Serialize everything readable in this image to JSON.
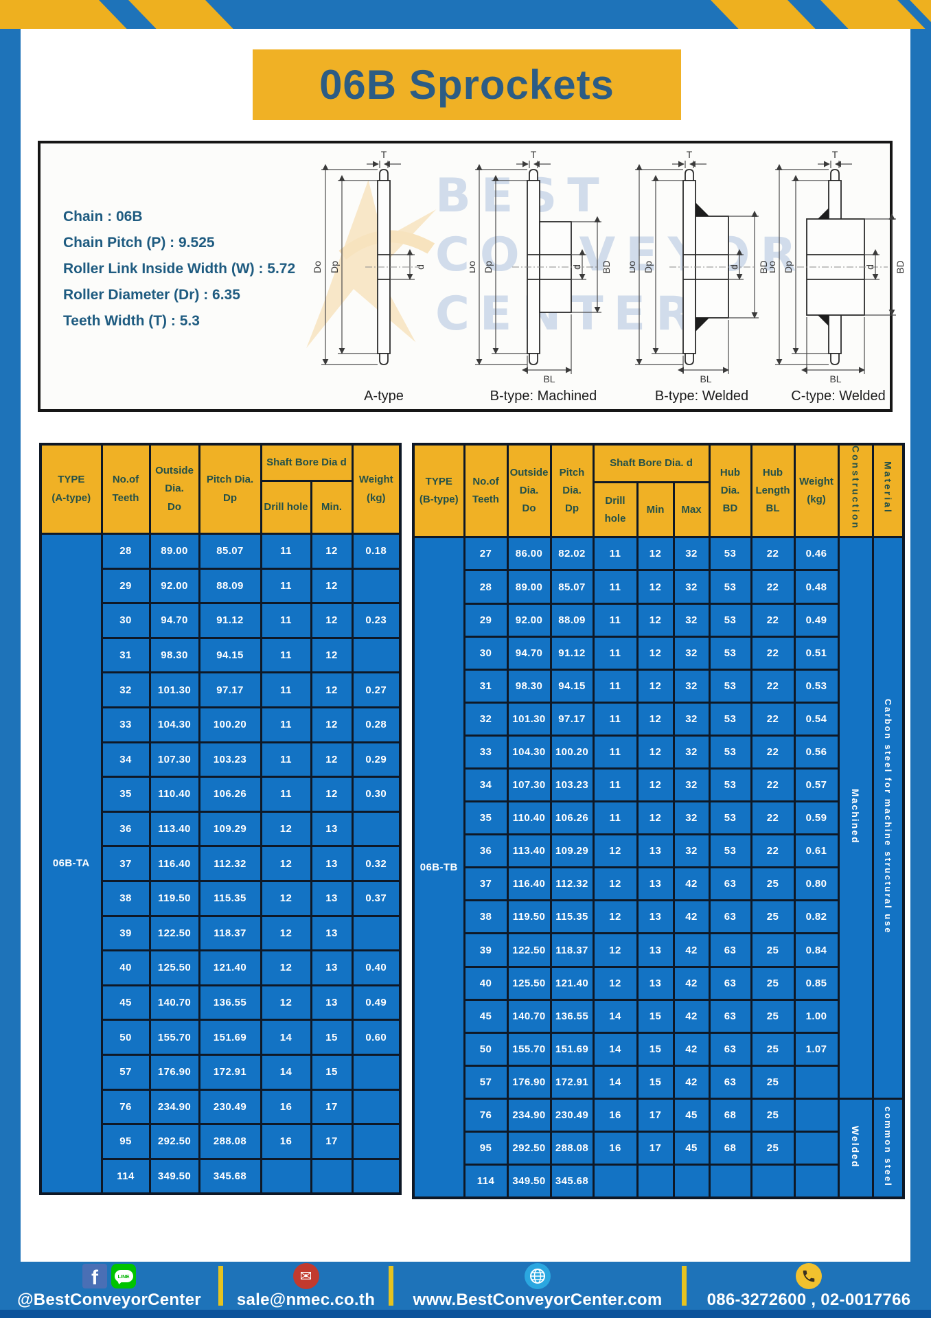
{
  "page": {
    "title": "06B Sprockets"
  },
  "colors": {
    "brand_blue": "#1e73b9",
    "brand_yellow": "#f0b125",
    "table_body_blue": "#1373c4",
    "header_text": "#235048",
    "title_text": "#2c5c84",
    "spec_text": "#1e5b80"
  },
  "specs": {
    "lines": [
      "Chain : 06B",
      "Chain Pitch (P) : 9.525",
      "Roller Link Inside Width (W) : 5.72",
      "Roller Diameter (Dr) : 6.35",
      "Teeth Width (T) : 5.3"
    ]
  },
  "watermark": {
    "line1": "BEST",
    "line2": "CONVEYOR",
    "line3": "CENTER"
  },
  "diagrams": [
    {
      "caption": "A-type",
      "labels": {
        "t": "T",
        "do": "Do",
        "dp": "Dp",
        "d": "d"
      }
    },
    {
      "caption": "B-type: Machined",
      "labels": {
        "t": "T",
        "do": "Do",
        "dp": "Dp",
        "d": "d",
        "bd": "BD",
        "bl": "BL"
      }
    },
    {
      "caption": "B-type: Welded",
      "labels": {
        "t": "T",
        "do": "Do",
        "dp": "Dp",
        "d": "d",
        "bd": "BD",
        "bl": "BL"
      }
    },
    {
      "caption": "C-type: Welded",
      "labels": {
        "t": "T",
        "do": "Do",
        "dp": "Dp",
        "d": "d",
        "bd": "BD",
        "bl": "BL"
      }
    }
  ],
  "left_table": {
    "header": {
      "type": "TYPE\n(A-type)",
      "teeth": "No.of\nTeeth",
      "outside": "Outside\nDia.\nDo",
      "pitch": "Pitch Dia.\nDp",
      "shaft_group": "Shaft Bore Dia d",
      "drill": "Drill hole",
      "min": "Min.",
      "weight": "Weight\n(kg)"
    },
    "type_label": "06B-TA",
    "rows": [
      [
        "28",
        "89.00",
        "85.07",
        "11",
        "12",
        "0.18"
      ],
      [
        "29",
        "92.00",
        "88.09",
        "11",
        "12",
        ""
      ],
      [
        "30",
        "94.70",
        "91.12",
        "11",
        "12",
        "0.23"
      ],
      [
        "31",
        "98.30",
        "94.15",
        "11",
        "12",
        ""
      ],
      [
        "32",
        "101.30",
        "97.17",
        "11",
        "12",
        "0.27"
      ],
      [
        "33",
        "104.30",
        "100.20",
        "11",
        "12",
        "0.28"
      ],
      [
        "34",
        "107.30",
        "103.23",
        "11",
        "12",
        "0.29"
      ],
      [
        "35",
        "110.40",
        "106.26",
        "11",
        "12",
        "0.30"
      ],
      [
        "36",
        "113.40",
        "109.29",
        "12",
        "13",
        ""
      ],
      [
        "37",
        "116.40",
        "112.32",
        "12",
        "13",
        "0.32"
      ],
      [
        "38",
        "119.50",
        "115.35",
        "12",
        "13",
        "0.37"
      ],
      [
        "39",
        "122.50",
        "118.37",
        "12",
        "13",
        ""
      ],
      [
        "40",
        "125.50",
        "121.40",
        "12",
        "13",
        "0.40"
      ],
      [
        "45",
        "140.70",
        "136.55",
        "12",
        "13",
        "0.49"
      ],
      [
        "50",
        "155.70",
        "151.69",
        "14",
        "15",
        "0.60"
      ],
      [
        "57",
        "176.90",
        "172.91",
        "14",
        "15",
        ""
      ],
      [
        "76",
        "234.90",
        "230.49",
        "16",
        "17",
        ""
      ],
      [
        "95",
        "292.50",
        "288.08",
        "16",
        "17",
        ""
      ],
      [
        "114",
        "349.50",
        "345.68",
        "",
        "",
        ""
      ]
    ]
  },
  "right_table": {
    "header": {
      "type": "TYPE\n(B-type)",
      "teeth": "No.of\nTeeth",
      "outside": "Outside\nDia.\nDo",
      "pitch": "Pitch\nDia.\nDp",
      "shaft_group": "Shaft Bore Dia. d",
      "drill": "Drill hole",
      "min": "Min",
      "max": "Max",
      "hub_dia": "Hub\nDia.\nBD",
      "hub_len": "Hub\nLength\nBL",
      "weight": "Weight\n(kg)",
      "construction": "Construction",
      "material": "Material"
    },
    "type_label": "06B-TB",
    "rows": [
      [
        "27",
        "86.00",
        "82.02",
        "11",
        "12",
        "32",
        "53",
        "22",
        "0.46"
      ],
      [
        "28",
        "89.00",
        "85.07",
        "11",
        "12",
        "32",
        "53",
        "22",
        "0.48"
      ],
      [
        "29",
        "92.00",
        "88.09",
        "11",
        "12",
        "32",
        "53",
        "22",
        "0.49"
      ],
      [
        "30",
        "94.70",
        "91.12",
        "11",
        "12",
        "32",
        "53",
        "22",
        "0.51"
      ],
      [
        "31",
        "98.30",
        "94.15",
        "11",
        "12",
        "32",
        "53",
        "22",
        "0.53"
      ],
      [
        "32",
        "101.30",
        "97.17",
        "11",
        "12",
        "32",
        "53",
        "22",
        "0.54"
      ],
      [
        "33",
        "104.30",
        "100.20",
        "11",
        "12",
        "32",
        "53",
        "22",
        "0.56"
      ],
      [
        "34",
        "107.30",
        "103.23",
        "11",
        "12",
        "32",
        "53",
        "22",
        "0.57"
      ],
      [
        "35",
        "110.40",
        "106.26",
        "11",
        "12",
        "32",
        "53",
        "22",
        "0.59"
      ],
      [
        "36",
        "113.40",
        "109.29",
        "12",
        "13",
        "32",
        "53",
        "22",
        "0.61"
      ],
      [
        "37",
        "116.40",
        "112.32",
        "12",
        "13",
        "42",
        "63",
        "25",
        "0.80"
      ],
      [
        "38",
        "119.50",
        "115.35",
        "12",
        "13",
        "42",
        "63",
        "25",
        "0.82"
      ],
      [
        "39",
        "122.50",
        "118.37",
        "12",
        "13",
        "42",
        "63",
        "25",
        "0.84"
      ],
      [
        "40",
        "125.50",
        "121.40",
        "12",
        "13",
        "42",
        "63",
        "25",
        "0.85"
      ],
      [
        "45",
        "140.70",
        "136.55",
        "14",
        "15",
        "42",
        "63",
        "25",
        "1.00"
      ],
      [
        "50",
        "155.70",
        "151.69",
        "14",
        "15",
        "42",
        "63",
        "25",
        "1.07"
      ],
      [
        "57",
        "176.90",
        "172.91",
        "14",
        "15",
        "42",
        "63",
        "25",
        ""
      ],
      [
        "76",
        "234.90",
        "230.49",
        "16",
        "17",
        "45",
        "68",
        "25",
        ""
      ],
      [
        "95",
        "292.50",
        "288.08",
        "16",
        "17",
        "45",
        "68",
        "25",
        ""
      ],
      [
        "114",
        "349.50",
        "345.68",
        "",
        "",
        "",
        "",
        "",
        ""
      ]
    ],
    "construction_spans": [
      {
        "label": "Machined",
        "rows": 17
      },
      {
        "label": "Welded",
        "rows": 3
      }
    ],
    "material_spans": [
      {
        "label": "Carbon steel for machine structural use",
        "rows": 17
      },
      {
        "label": "common steel",
        "rows": 3
      }
    ]
  },
  "footer": {
    "social_label": "@BestConveyorCenter",
    "facebook_glyph": "f",
    "line_badge": "LINE",
    "email_glyph": "✉",
    "email": "sale@nmec.co.th",
    "website": "www.BestConveyorCenter.com",
    "phone": "086-3272600 , 02-0017766"
  }
}
